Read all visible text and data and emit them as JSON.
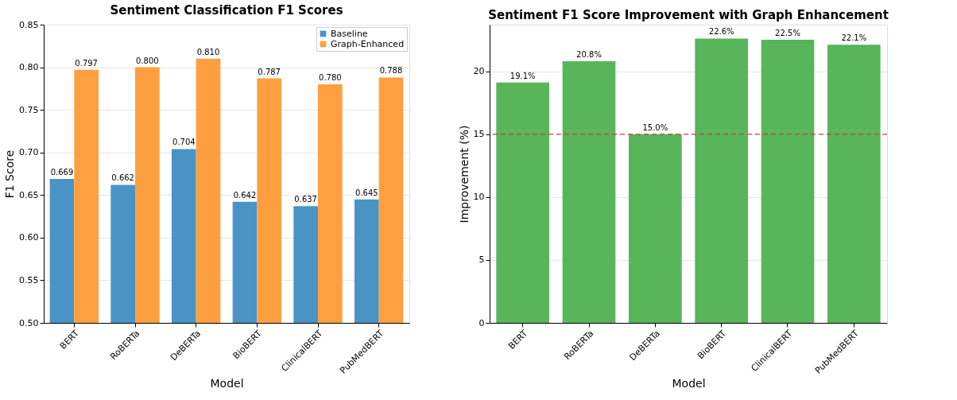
{
  "chart_data": [
    {
      "type": "bar",
      "title": "Sentiment Classification F1 Scores",
      "xlabel": "Model",
      "ylabel": "F1 Score",
      "categories": [
        "BERT",
        "RoBERTa",
        "DeBERTa",
        "BioBERT",
        "ClinicalBERT",
        "PubMedBERT"
      ],
      "series": [
        {
          "name": "Baseline",
          "color": "#4a93c5",
          "values": [
            0.669,
            0.662,
            0.704,
            0.642,
            0.637,
            0.645
          ],
          "value_labels": [
            "0.669",
            "0.662",
            "0.704",
            "0.642",
            "0.637",
            "0.645"
          ]
        },
        {
          "name": "Graph-Enhanced",
          "color": "#ff9f40",
          "values": [
            0.797,
            0.8,
            0.81,
            0.787,
            0.78,
            0.788
          ],
          "value_labels": [
            "0.797",
            "0.800",
            "0.810",
            "0.787",
            "0.780",
            "0.788"
          ]
        }
      ],
      "ylim": [
        0.5,
        0.85
      ],
      "yticks": [
        {
          "value": 0.5,
          "label": "0.50"
        },
        {
          "value": 0.55,
          "label": "0.55"
        },
        {
          "value": 0.6,
          "label": "0.60"
        },
        {
          "value": 0.65,
          "label": "0.65"
        },
        {
          "value": 0.7,
          "label": "0.70"
        },
        {
          "value": 0.75,
          "label": "0.75"
        },
        {
          "value": 0.8,
          "label": "0.80"
        },
        {
          "value": 0.85,
          "label": "0.85"
        }
      ],
      "grid": "y",
      "legend": "top right"
    },
    {
      "type": "bar",
      "title": "Sentiment F1 Score Improvement with Graph Enhancement",
      "xlabel": "Model",
      "ylabel": "Improvement (%)",
      "categories": [
        "BERT",
        "RoBERTa",
        "DeBERTa",
        "BioBERT",
        "ClinicalBERT",
        "PubMedBERT"
      ],
      "series": [
        {
          "color": "#58b55a",
          "values": [
            19.1,
            20.8,
            15.0,
            22.6,
            22.5,
            22.1
          ],
          "value_labels": [
            "19.1%",
            "20.8%",
            "15.0%",
            "22.6%",
            "22.5%",
            "22.1%"
          ]
        }
      ],
      "ylim": [
        0,
        23.7
      ],
      "yticks": [
        0,
        5,
        10,
        15,
        20
      ],
      "ref_lines": [
        {
          "axis": "y",
          "value": 15,
          "color": "#d62728",
          "line_style": "dashed"
        }
      ],
      "grid": "y"
    }
  ]
}
